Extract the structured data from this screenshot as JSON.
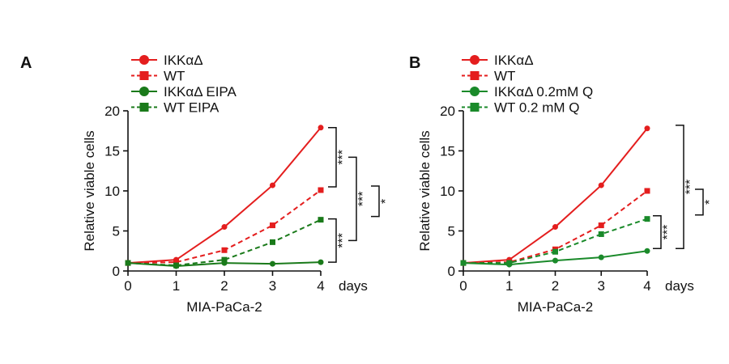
{
  "chart_data": [
    {
      "type": "line",
      "panel_label": "A",
      "xlabel": "MIA-PaCa-2",
      "ylabel": "Relative viable cells",
      "x_unit": "days",
      "x": [
        0,
        1,
        2,
        3,
        4
      ],
      "x_tick_labels": [
        "0",
        "1",
        "2",
        "3",
        "4"
      ],
      "y_tick_labels": [
        "0",
        "5",
        "10",
        "15",
        "20"
      ],
      "ylim": [
        0,
        20
      ],
      "series": [
        {
          "name": "IKKαΔ",
          "values": [
            1.0,
            1.4,
            5.5,
            10.7,
            17.9
          ],
          "color": "#e41e1e",
          "marker": "circle",
          "dash": "solid"
        },
        {
          "name": "WT",
          "values": [
            1.0,
            1.1,
            2.6,
            5.7,
            10.1
          ],
          "color": "#e41e1e",
          "marker": "square",
          "dash": "dashed"
        },
        {
          "name": "IKKαΔ EIPA",
          "values": [
            1.0,
            0.6,
            1.0,
            0.9,
            1.1
          ],
          "color": "#1a7a1a",
          "marker": "circle",
          "dash": "solid"
        },
        {
          "name": "WT  EIPA",
          "values": [
            1.0,
            0.7,
            1.4,
            3.6,
            6.4
          ],
          "color": "#1a7a1a",
          "marker": "square",
          "dash": "dashed"
        }
      ],
      "significance": [
        {
          "label": "***",
          "y_range": [
            10.5,
            17.9
          ]
        },
        {
          "label": "***",
          "y_range": [
            1.1,
            6.5
          ]
        },
        {
          "label": "***",
          "y_range": [
            3.8,
            14.2
          ]
        },
        {
          "label": "*",
          "y_range": [
            6.8,
            10.6
          ]
        }
      ],
      "grid": false,
      "legend_position": "top"
    },
    {
      "type": "line",
      "panel_label": "B",
      "xlabel": "MIA-PaCa-2",
      "ylabel": "Relative viable cells",
      "x_unit": "days",
      "x": [
        0,
        1,
        2,
        3,
        4
      ],
      "x_tick_labels": [
        "0",
        "1",
        "2",
        "3",
        "4"
      ],
      "y_tick_labels": [
        "0",
        "5",
        "10",
        "15",
        "20"
      ],
      "ylim": [
        0,
        20
      ],
      "series": [
        {
          "name": "IKKαΔ",
          "values": [
            1.0,
            1.4,
            5.5,
            10.7,
            17.8
          ],
          "color": "#e41e1e",
          "marker": "circle",
          "dash": "solid"
        },
        {
          "name": "WT",
          "values": [
            1.0,
            1.1,
            2.7,
            5.7,
            10.0
          ],
          "color": "#e41e1e",
          "marker": "square",
          "dash": "dashed"
        },
        {
          "name": "IKKαΔ 0.2mM Q",
          "values": [
            1.0,
            0.8,
            1.3,
            1.7,
            2.5
          ],
          "color": "#1a8a2a",
          "marker": "circle",
          "dash": "solid"
        },
        {
          "name": "WT 0.2 mM Q",
          "values": [
            1.0,
            1.0,
            2.4,
            4.6,
            6.5
          ],
          "color": "#1a8a2a",
          "marker": "square",
          "dash": "dashed"
        }
      ],
      "significance": [
        {
          "label": "***",
          "y_range": [
            2.8,
            6.9
          ]
        },
        {
          "label": "***",
          "y_range": [
            2.8,
            18.2
          ]
        },
        {
          "label": "*",
          "y_range": [
            7.0,
            10.2
          ]
        }
      ],
      "grid": false,
      "legend_position": "top"
    }
  ]
}
